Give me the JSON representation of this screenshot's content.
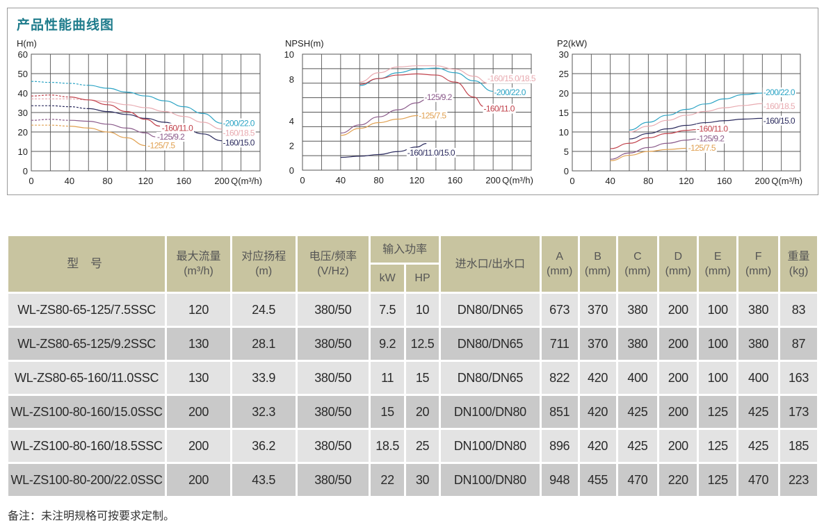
{
  "title": "产品性能曲线图",
  "colors": {
    "title": "#1f7c8c",
    "header_bg": "#c8c4a0",
    "row_light": "#e3e3e3",
    "row_dark": "#c9c9c9",
    "grid": "#555555"
  },
  "chart_data": [
    {
      "type": "line",
      "title": "H(m)",
      "ylabel": "H(m)",
      "xlabel": "Q(m³/h)",
      "xlim": [
        0,
        240
      ],
      "ylim": [
        0,
        60
      ],
      "xticks": [
        0,
        40,
        80,
        120,
        160,
        200
      ],
      "yticks": [
        0,
        10,
        20,
        30,
        40,
        50,
        60
      ],
      "grid": true,
      "series": [
        {
          "name": "-200/22.0",
          "color": "#2aa3c4",
          "dashed_until": 60,
          "x": [
            0,
            20,
            40,
            60,
            80,
            100,
            120,
            140,
            160,
            180,
            200
          ],
          "y": [
            46,
            45.5,
            45,
            44,
            42.5,
            40.5,
            38.5,
            36,
            33,
            29.5,
            24.5
          ]
        },
        {
          "name": "-160/18.5",
          "color": "#e8aab0",
          "dashed_until": 60,
          "x": [
            0,
            20,
            40,
            60,
            80,
            100,
            120,
            140,
            160,
            180,
            200
          ],
          "y": [
            37,
            37,
            37,
            36.5,
            35.5,
            34,
            32.5,
            30.5,
            28,
            25,
            21.5
          ]
        },
        {
          "name": "-160/15.0",
          "color": "#2b2b5e",
          "dashed_until": 60,
          "x": [
            0,
            20,
            40,
            60,
            80,
            100,
            120,
            140,
            160,
            180,
            200
          ],
          "y": [
            33.5,
            33.5,
            33,
            32,
            30.5,
            29,
            27,
            25,
            22,
            19,
            15.5
          ]
        },
        {
          "name": "-160/11.0",
          "color": "#c0404a",
          "dashed_until": 40,
          "x": [
            0,
            20,
            40,
            60,
            80,
            100,
            120,
            135
          ],
          "y": [
            38.5,
            39,
            38,
            36.5,
            34,
            30.5,
            26.5,
            23
          ]
        },
        {
          "name": "-125/9.2",
          "color": "#8a5a8a",
          "dashed_until": 40,
          "x": [
            0,
            20,
            40,
            60,
            80,
            100,
            120,
            130
          ],
          "y": [
            26,
            26.5,
            26,
            25.5,
            24,
            22,
            19.5,
            17.5
          ]
        },
        {
          "name": "-125/7.5",
          "color": "#e0a050",
          "dashed_until": 40,
          "x": [
            0,
            20,
            40,
            60,
            80,
            100,
            120
          ],
          "y": [
            23.5,
            23.5,
            23,
            22,
            20,
            17,
            13
          ]
        }
      ],
      "labels": [
        {
          "text": "-160/11.0",
          "color": "#c0404a",
          "x": 137,
          "y": 22
        },
        {
          "text": "-125/9.2",
          "color": "#8a5a8a",
          "x": 132,
          "y": 17.5
        },
        {
          "text": "-125/7.5",
          "color": "#e0a050",
          "x": 122,
          "y": 13
        },
        {
          "text": "-200/22.0",
          "color": "#2aa3c4",
          "x": 201,
          "y": 24.5
        },
        {
          "text": "-160/18.5",
          "color": "#e8aab0",
          "x": 201,
          "y": 19.5
        },
        {
          "text": "-160/15.0",
          "color": "#2b2b5e",
          "x": 201,
          "y": 14.5
        }
      ]
    },
    {
      "type": "line",
      "title": "NPSH(m)",
      "ylabel": "NPSH(m)",
      "xlabel": "Q(m³/h)",
      "xlim": [
        0,
        240
      ],
      "ylim": [
        0,
        10
      ],
      "xticks": [
        0,
        40,
        80,
        120,
        160,
        200
      ],
      "yticks_shown": [
        0,
        2,
        4,
        8,
        10
      ],
      "grid_rows": 8,
      "grid": true,
      "series": [
        {
          "name": "-160/15.0/18.5",
          "color": "#e8aab0",
          "x": [
            60,
            80,
            100,
            120,
            140,
            160,
            180,
            195
          ],
          "y": [
            7.6,
            8.4,
            8.9,
            9.0,
            9.0,
            8.7,
            8.1,
            7.5
          ]
        },
        {
          "name": "-200/22.0",
          "color": "#2aa3c4",
          "x": [
            60,
            80,
            100,
            120,
            140,
            160,
            180,
            200
          ],
          "y": [
            7.3,
            7.9,
            8.4,
            8.7,
            8.8,
            8.4,
            7.7,
            6.8
          ]
        },
        {
          "name": "-160/11.0",
          "color": "#c0404a",
          "x": [
            60,
            80,
            100,
            120,
            140,
            160,
            180,
            190
          ],
          "y": [
            7.4,
            7.9,
            8.2,
            8.3,
            8.2,
            7.6,
            6.3,
            5.5
          ]
        },
        {
          "name": "-125/9.2",
          "color": "#8a5a8a",
          "x": [
            40,
            60,
            80,
            100,
            120,
            130
          ],
          "y": [
            3.2,
            3.9,
            4.6,
            5.2,
            5.8,
            6.1
          ]
        },
        {
          "name": "-125/7.5",
          "color": "#e0a050",
          "x": [
            40,
            60,
            80,
            100,
            120,
            130
          ],
          "y": [
            3.0,
            3.6,
            4.1,
            4.4,
            4.7,
            4.8
          ]
        },
        {
          "name": "-160/11.0/15.0",
          "color": "#2b2b5e",
          "x": [
            40,
            60,
            80,
            100,
            120,
            130
          ],
          "y": [
            1.1,
            1.2,
            1.35,
            1.6,
            2.0,
            2.3
          ]
        }
      ],
      "labels": [
        {
          "text": "-160/15.0/18.5",
          "color": "#e8aab0",
          "x": 194,
          "y": 7.9
        },
        {
          "text": "-200/22.0",
          "color": "#2aa3c4",
          "x": 201,
          "y": 6.7
        },
        {
          "text": "-160/11.0",
          "color": "#c0404a",
          "x": 190,
          "y": 5.3
        },
        {
          "text": "-125/9.2",
          "color": "#8a5a8a",
          "x": 128,
          "y": 6.3
        },
        {
          "text": "-125/7.5",
          "color": "#e0a050",
          "x": 122,
          "y": 4.7
        },
        {
          "text": "-160/11.0/15.0",
          "color": "#2b2b5e",
          "x": 110,
          "y": 1.5
        }
      ]
    },
    {
      "type": "line",
      "title": "P2(kW)",
      "ylabel": "P2(kW)",
      "xlabel": "Q(m³/h)",
      "xlim": [
        0,
        240
      ],
      "ylim": [
        0,
        30
      ],
      "xticks": [
        0,
        40,
        80,
        120,
        160,
        200
      ],
      "yticks": [
        0,
        5,
        10,
        15,
        20,
        25,
        30
      ],
      "grid": true,
      "series": [
        {
          "name": "-200/22.0",
          "color": "#2aa3c4",
          "x": [
            60,
            80,
            100,
            120,
            140,
            160,
            180,
            200
          ],
          "y": [
            10.5,
            12.5,
            14.3,
            15.8,
            17.2,
            18.5,
            19.6,
            20
          ]
        },
        {
          "name": "-160/18.5",
          "color": "#e8aab0",
          "x": [
            60,
            80,
            100,
            120,
            140,
            160,
            180,
            200
          ],
          "y": [
            10,
            11.5,
            13,
            14.3,
            15.3,
            16.2,
            16.8,
            17.3
          ]
        },
        {
          "name": "-160/15.0",
          "color": "#2b2b5e",
          "x": [
            60,
            80,
            100,
            120,
            140,
            160,
            180,
            200
          ],
          "y": [
            8.2,
            9.6,
            10.8,
            11.7,
            12.4,
            12.9,
            13.3,
            13.5
          ]
        },
        {
          "name": "-160/11.0",
          "color": "#c0404a",
          "x": [
            40,
            60,
            80,
            100,
            120,
            130
          ],
          "y": [
            5.7,
            7.1,
            8.5,
            9.6,
            10.4,
            10.6
          ]
        },
        {
          "name": "-125/9.2",
          "color": "#8a5a8a",
          "x": [
            40,
            60,
            80,
            100,
            120,
            130
          ],
          "y": [
            3.0,
            4.6,
            6.0,
            7.1,
            7.9,
            8.2
          ]
        },
        {
          "name": "-125/7.5",
          "color": "#e0a050",
          "x": [
            40,
            60,
            80,
            100,
            120
          ],
          "y": [
            2.6,
            4.0,
            5.0,
            5.5,
            5.8
          ]
        }
      ],
      "labels": [
        {
          "text": "-200/22.0",
          "color": "#2aa3c4",
          "x": 201,
          "y": 20.2
        },
        {
          "text": "-160/18.5",
          "color": "#e8aab0",
          "x": 201,
          "y": 16.6
        },
        {
          "text": "-160/15.0",
          "color": "#2b2b5e",
          "x": 201,
          "y": 12.9
        },
        {
          "text": "-160/11.0",
          "color": "#c0404a",
          "x": 131,
          "y": 10.8
        },
        {
          "text": "-125/9.2",
          "color": "#8a5a8a",
          "x": 131,
          "y": 8.3
        },
        {
          "text": "-125/7.5",
          "color": "#e0a050",
          "x": 122,
          "y": 5.9
        }
      ]
    }
  ],
  "table": {
    "headers": {
      "model": "型 号",
      "flow": "最大流量",
      "flow_unit": "(m³/h)",
      "head": "对应扬程",
      "head_unit": "(m)",
      "voltage": "电压/频率",
      "voltage_unit": "(V/Hz)",
      "power": "输入功率",
      "kw": "kW",
      "hp": "HP",
      "ports": "进水口/出水口",
      "a": "A",
      "b": "B",
      "c": "C",
      "d": "D",
      "e": "E",
      "f": "F",
      "mm": "(mm)",
      "weight": "重量",
      "weight_unit": "(kg)"
    },
    "rows": [
      {
        "model": "WL-ZS80-65-125/7.5SSC",
        "flow": "120",
        "head": "24.5",
        "voltage": "380/50",
        "kw": "7.5",
        "hp": "10",
        "ports": "DN80/DN65",
        "a": "673",
        "b": "370",
        "c": "380",
        "d": "200",
        "e": "100",
        "f": "380",
        "weight": "83"
      },
      {
        "model": "WL-ZS80-65-125/9.2SSC",
        "flow": "130",
        "head": "28.1",
        "voltage": "380/50",
        "kw": "9.2",
        "hp": "12.5",
        "ports": "DN80/DN65",
        "a": "711",
        "b": "370",
        "c": "380",
        "d": "200",
        "e": "100",
        "f": "380",
        "weight": "87"
      },
      {
        "model": "WL-ZS80-65-160/11.0SSC",
        "flow": "130",
        "head": "33.9",
        "voltage": "380/50",
        "kw": "11",
        "hp": "15",
        "ports": "DN80/DN65",
        "a": "822",
        "b": "420",
        "c": "400",
        "d": "200",
        "e": "100",
        "f": "400",
        "weight": "163"
      },
      {
        "model": "WL-ZS100-80-160/15.0SSC",
        "flow": "200",
        "head": "32.3",
        "voltage": "380/50",
        "kw": "15",
        "hp": "20",
        "ports": "DN100/DN80",
        "a": "851",
        "b": "420",
        "c": "425",
        "d": "200",
        "e": "125",
        "f": "425",
        "weight": "173"
      },
      {
        "model": "WL-ZS100-80-160/18.5SSC",
        "flow": "200",
        "head": "36.2",
        "voltage": "380/50",
        "kw": "18.5",
        "hp": "25",
        "ports": "DN100/DN80",
        "a": "896",
        "b": "420",
        "c": "425",
        "d": "200",
        "e": "125",
        "f": "425",
        "weight": "185"
      },
      {
        "model": "WL-ZS100-80-200/22.0SSC",
        "flow": "200",
        "head": "43.5",
        "voltage": "380/50",
        "kw": "22",
        "hp": "30",
        "ports": "DN100/DN80",
        "a": "948",
        "b": "455",
        "c": "470",
        "d": "220",
        "e": "125",
        "f": "470",
        "weight": "223"
      }
    ]
  },
  "note": "备注：未注明规格可按要求定制。"
}
